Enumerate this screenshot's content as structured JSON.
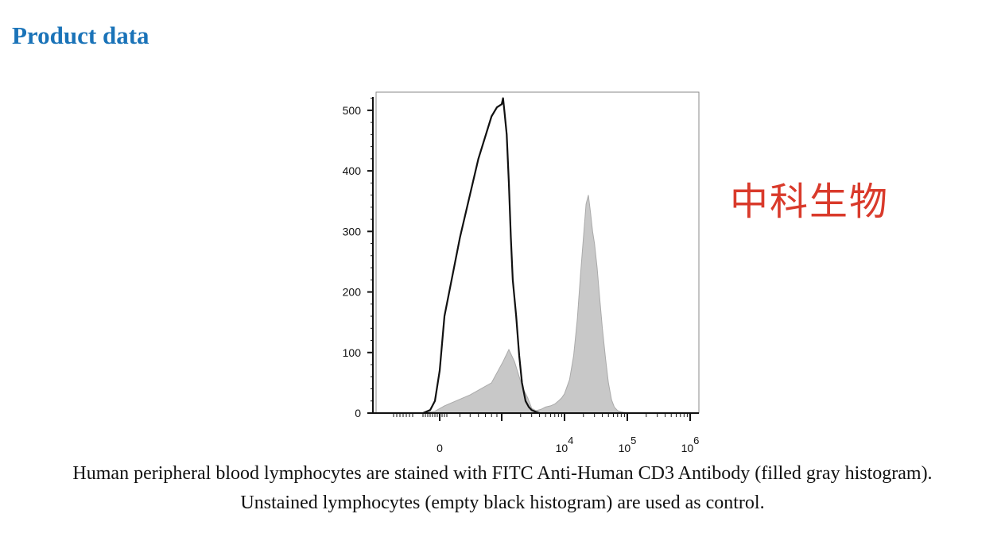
{
  "section_title": "Product data",
  "watermark": "中科生物",
  "caption": {
    "line1": "Human peripheral blood lymphocytes are stained with FITC Anti-Human CD3 Antibody (filled gray histogram).",
    "line2": "Unstained lymphocytes (empty black histogram) are used as control."
  },
  "chart_data": {
    "type": "area",
    "title": "",
    "xlabel": "",
    "ylabel": "",
    "xscale": "biexponential",
    "ylim": [
      0,
      530
    ],
    "yticks": [
      0,
      100,
      200,
      300,
      400,
      500
    ],
    "xtick_labels": [
      {
        "value": 0,
        "base": "0",
        "exp": ""
      },
      {
        "value": 10000,
        "base": "10",
        "exp": "4"
      },
      {
        "value": 100000,
        "base": "10",
        "exp": "5"
      },
      {
        "value": 1000000,
        "base": "10",
        "exp": "6"
      }
    ],
    "grid": false,
    "legend": "none",
    "colors": {
      "stained": "#c8c8c8",
      "stained_edge": "#aaaaaa",
      "control": "#111111"
    },
    "series": [
      {
        "style": "filled-gray",
        "x": [
          -700,
          -200,
          200,
          500,
          800,
          1050,
          1300,
          1600,
          1900,
          2200,
          2600,
          3000,
          3500,
          4200,
          5000,
          6000,
          7000,
          8000,
          9000,
          10000,
          12000,
          14000,
          16000,
          18000,
          20000,
          22000,
          24000,
          26000,
          28000,
          30000,
          33000,
          36000,
          40000,
          45000,
          50000,
          56000,
          62000,
          70000,
          80000,
          90000,
          100000
        ],
        "y": [
          0,
          3,
          12,
          30,
          50,
          85,
          105,
          85,
          60,
          40,
          25,
          8,
          4,
          6,
          10,
          12,
          15,
          20,
          25,
          32,
          55,
          95,
          155,
          230,
          290,
          345,
          360,
          330,
          300,
          280,
          240,
          195,
          140,
          90,
          50,
          22,
          10,
          4,
          2,
          1,
          0
        ]
      },
      {
        "style": "empty-black",
        "x": [
          -700,
          -400,
          -200,
          0,
          200,
          400,
          600,
          800,
          900,
          1000,
          1050,
          1100,
          1200,
          1300,
          1400,
          1500,
          1700,
          1900,
          2100,
          2400,
          2700,
          3000,
          3500,
          4000
        ],
        "y": [
          0,
          5,
          20,
          70,
          160,
          290,
          420,
          490,
          505,
          510,
          520,
          500,
          460,
          380,
          290,
          220,
          160,
          95,
          50,
          20,
          10,
          5,
          2,
          0
        ]
      }
    ]
  }
}
